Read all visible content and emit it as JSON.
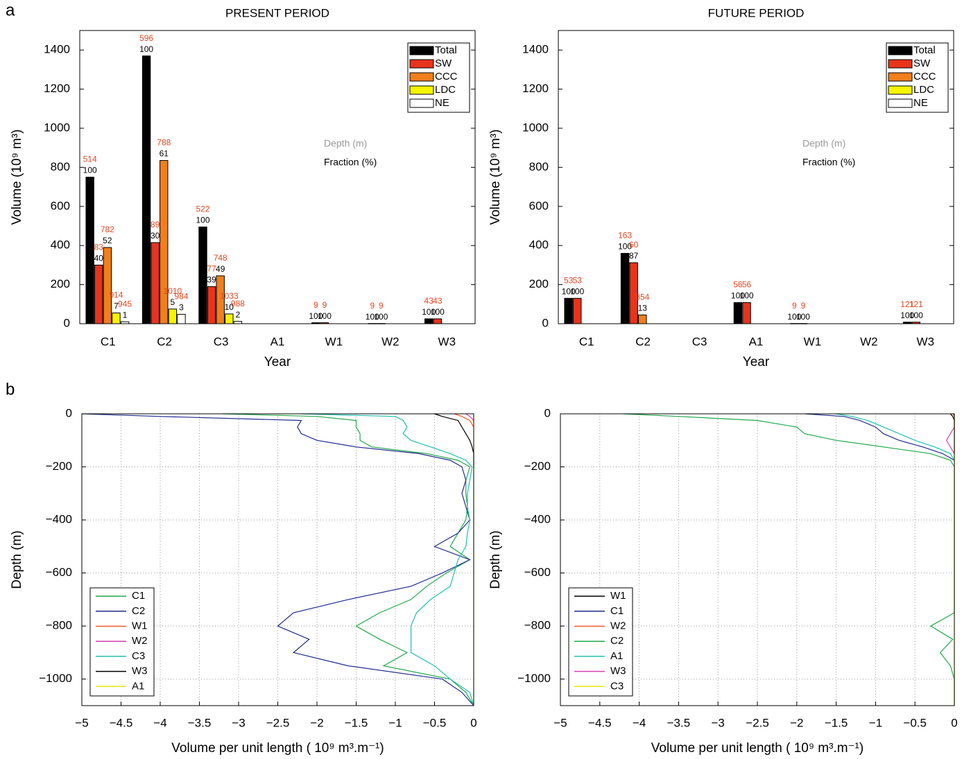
{
  "panel_labels": [
    "a",
    "b"
  ],
  "chart_data": [
    {
      "type": "bar",
      "title": "PRESENT PERIOD",
      "x_label": "Year",
      "y_label": "Volume (10⁹ m³)",
      "annotations": [
        "Depth (m)",
        "Fraction (%)"
      ],
      "categories": [
        "C1",
        "C2",
        "C3",
        "A1",
        "W1",
        "W2",
        "W3"
      ],
      "ylim": [
        0,
        1500
      ],
      "yticks": [
        0,
        200,
        400,
        600,
        800,
        1000,
        1200,
        1400
      ],
      "grid": false,
      "legend": "upper right",
      "series": [
        {
          "name": "Total",
          "color": "#000000",
          "values": [
            750,
            1370,
            495,
            null,
            5,
            1,
            25
          ],
          "fraction": [
            100,
            100,
            100,
            null,
            100,
            100,
            100
          ],
          "depth": [
            514,
            596,
            522,
            null,
            9,
            9,
            43
          ]
        },
        {
          "name": "SW",
          "color": "#e8341c",
          "values": [
            300,
            415,
            190,
            null,
            5,
            1,
            25
          ],
          "fraction": [
            40,
            30,
            39,
            null,
            100,
            100,
            100
          ],
          "depth": [
            83,
            89,
            77,
            null,
            9,
            9,
            43
          ]
        },
        {
          "name": "CCC",
          "color": "#f07f1c",
          "values": [
            390,
            835,
            245,
            null,
            null,
            null,
            null
          ],
          "fraction": [
            52,
            61,
            49,
            null,
            null,
            null,
            null
          ],
          "depth": [
            782,
            788,
            748,
            null,
            null,
            null,
            null
          ]
        },
        {
          "name": "LDC",
          "color": "#f5f500",
          "values": [
            55,
            75,
            50,
            null,
            null,
            null,
            null
          ],
          "fraction": [
            7,
            5,
            10,
            null,
            null,
            null,
            null
          ],
          "depth": [
            914,
            1010,
            1033,
            null,
            null,
            null,
            null
          ]
        },
        {
          "name": "NE",
          "color": "#ffffff",
          "values": [
            10,
            48,
            12,
            null,
            null,
            null,
            null
          ],
          "fraction": [
            1,
            3,
            2,
            null,
            null,
            null,
            null
          ],
          "depth": [
            945,
            984,
            988,
            null,
            null,
            null,
            null
          ]
        }
      ]
    },
    {
      "type": "bar",
      "title": "FUTURE PERIOD",
      "x_label": "Year",
      "y_label": "Volume (10⁹ m³)",
      "annotations": [
        "Depth (m)",
        "Fraction (%)"
      ],
      "categories": [
        "C1",
        "C2",
        "C3",
        "A1",
        "W1",
        "W2",
        "W3"
      ],
      "ylim": [
        0,
        1500
      ],
      "yticks": [
        0,
        200,
        400,
        600,
        800,
        1000,
        1200,
        1400
      ],
      "grid": false,
      "legend": "upper right",
      "series": [
        {
          "name": "Total",
          "color": "#000000",
          "values": [
            130,
            360,
            null,
            108,
            1,
            null,
            8
          ],
          "fraction": [
            100,
            100,
            null,
            100,
            100,
            null,
            100
          ],
          "depth": [
            53,
            163,
            null,
            56,
            9,
            null,
            121
          ]
        },
        {
          "name": "SW",
          "color": "#e8341c",
          "values": [
            130,
            312,
            null,
            108,
            1,
            null,
            8
          ],
          "fraction": [
            100,
            87,
            null,
            100,
            100,
            null,
            100
          ],
          "depth": [
            53,
            60,
            null,
            56,
            9,
            null,
            121
          ]
        },
        {
          "name": "CCC",
          "color": "#f07f1c",
          "values": [
            null,
            45,
            null,
            null,
            null,
            null,
            null
          ],
          "fraction": [
            null,
            13,
            null,
            null,
            null,
            null,
            null
          ],
          "depth": [
            null,
            854,
            null,
            null,
            null,
            null,
            null
          ]
        },
        {
          "name": "LDC",
          "color": "#f5f500",
          "values": [
            null,
            null,
            null,
            null,
            null,
            null,
            null
          ],
          "fraction": [
            null,
            null,
            null,
            null,
            null,
            null,
            null
          ],
          "depth": [
            null,
            null,
            null,
            null,
            null,
            null,
            null
          ]
        },
        {
          "name": "NE",
          "color": "#ffffff",
          "values": [
            null,
            null,
            null,
            null,
            null,
            null,
            null
          ],
          "fraction": [
            null,
            null,
            null,
            null,
            null,
            null,
            null
          ],
          "depth": [
            null,
            null,
            null,
            null,
            null,
            null,
            null
          ]
        }
      ]
    },
    {
      "type": "line",
      "x_label": "Volume per unit length ( 10⁹ m³.m⁻¹)",
      "y_label": "Depth (m)",
      "xlim": [
        -5,
        0
      ],
      "ylim": [
        -1100,
        0
      ],
      "grid": true,
      "legend": "lower left",
      "xticks": [
        {
          "value": -5,
          "label": "−5"
        },
        {
          "value": -4.5,
          "label": "−4.5"
        },
        {
          "value": -4,
          "label": "−4"
        },
        {
          "value": -3.5,
          "label": "−3.5"
        },
        {
          "value": -3,
          "label": "−3"
        },
        {
          "value": -2.5,
          "label": "−2.5"
        },
        {
          "value": -2,
          "label": "−2"
        },
        {
          "value": -1.5,
          "label": "−1.5"
        },
        {
          "value": -1,
          "label": "−1"
        },
        {
          "value": -0.5,
          "label": "−0.5"
        },
        0
      ],
      "yticks": [
        0,
        {
          "value": -200,
          "label": "−200"
        },
        {
          "value": -400,
          "label": "−400"
        },
        {
          "value": -600,
          "label": "−600"
        },
        {
          "value": -800,
          "label": "−800"
        },
        {
          "value": -1000,
          "label": "−1000"
        }
      ],
      "depths": [
        0,
        -10,
        -25,
        -50,
        -75,
        -100,
        -125,
        -150,
        -175,
        -200,
        -250,
        -300,
        -350,
        -400,
        -450,
        -500,
        -550,
        -600,
        -650,
        -700,
        -750,
        -800,
        -850,
        -900,
        -950,
        -1000,
        -1050,
        -1100
      ],
      "series": [
        {
          "name": "C1",
          "color": "#22a84a",
          "values": [
            -3.2,
            -2.0,
            -1.5,
            -1.5,
            -1.45,
            -1.45,
            -1.3,
            -0.6,
            -0.2,
            -0.05,
            -0.1,
            -0.1,
            -0.08,
            -0.1,
            -0.2,
            -0.3,
            -0.05,
            -0.35,
            -0.6,
            -0.8,
            -1.2,
            -1.5,
            -1.2,
            -0.85,
            -1.15,
            -0.3,
            -0.1,
            0
          ]
        },
        {
          "name": "C2",
          "color": "#1f2a8c",
          "values": [
            -5,
            -4.0,
            -2.2,
            -2.25,
            -2.2,
            -2.0,
            -1.5,
            -0.7,
            -0.3,
            -0.15,
            -0.1,
            -0.15,
            -0.1,
            -0.05,
            -0.2,
            -0.5,
            -0.05,
            -0.4,
            -0.8,
            -1.6,
            -2.3,
            -2.5,
            -2.1,
            -2.3,
            -1.6,
            -0.4,
            -0.15,
            0
          ]
        },
        {
          "name": "W1",
          "color": "#f05a22",
          "values": [
            -0.25,
            -0.15,
            -0.05,
            0,
            null,
            null,
            null,
            null,
            null,
            null,
            null,
            null,
            null,
            null,
            null,
            null,
            null,
            null,
            null,
            null,
            null,
            null,
            null,
            null,
            null,
            null,
            null,
            null
          ]
        },
        {
          "name": "W2",
          "color": "#d63fb0",
          "values": [
            -0.1,
            -0.05,
            0,
            null,
            null,
            null,
            null,
            null,
            null,
            null,
            null,
            null,
            null,
            null,
            null,
            null,
            null,
            null,
            null,
            null,
            null,
            null,
            null,
            null,
            null,
            null,
            null,
            null
          ]
        },
        {
          "name": "C3",
          "color": "#1fbfb0",
          "values": [
            -2.2,
            -1.0,
            -0.9,
            -0.85,
            -0.9,
            -0.8,
            -0.55,
            -0.3,
            -0.1,
            -0.02,
            -0.05,
            -0.08,
            -0.08,
            -0.05,
            -0.08,
            -0.1,
            -0.2,
            -0.25,
            -0.3,
            -0.55,
            -0.73,
            -0.8,
            -0.8,
            -0.8,
            -0.5,
            -0.3,
            -0.05,
            0
          ]
        },
        {
          "name": "W3",
          "color": "#000000",
          "values": [
            -0.5,
            -0.4,
            -0.2,
            -0.15,
            -0.1,
            -0.05,
            -0.02,
            0,
            0,
            0,
            null,
            null,
            null,
            null,
            null,
            null,
            null,
            null,
            null,
            null,
            null,
            null,
            null,
            null,
            null,
            null,
            null,
            null
          ]
        },
        {
          "name": "A1",
          "color": "#e8e800",
          "values": [
            0,
            0,
            0,
            0,
            0,
            0,
            0,
            0,
            0,
            0,
            0,
            0,
            0,
            0,
            0,
            0,
            0,
            0,
            0,
            0,
            0,
            0,
            0,
            0,
            0,
            0,
            0,
            0
          ]
        }
      ]
    },
    {
      "type": "line",
      "x_label": "Volume per unit length ( 10⁹ m³.m⁻¹)",
      "y_label": "Depth (m)",
      "xlim": [
        -5,
        0
      ],
      "ylim": [
        -1100,
        0
      ],
      "grid": true,
      "legend": "lower left",
      "xticks": [
        {
          "value": -5,
          "label": "−5"
        },
        {
          "value": -4.5,
          "label": "−4.5"
        },
        {
          "value": -4,
          "label": "−4"
        },
        {
          "value": -3.5,
          "label": "−3.5"
        },
        {
          "value": -3,
          "label": "−3"
        },
        {
          "value": -2.5,
          "label": "−2.5"
        },
        {
          "value": -2,
          "label": "−2"
        },
        {
          "value": -1.5,
          "label": "−1.5"
        },
        {
          "value": -1,
          "label": "−1"
        },
        {
          "value": -0.5,
          "label": "−0.5"
        },
        0
      ],
      "yticks": [
        0,
        {
          "value": -200,
          "label": "−200"
        },
        {
          "value": -400,
          "label": "−400"
        },
        {
          "value": -600,
          "label": "−600"
        },
        {
          "value": -800,
          "label": "−800"
        },
        {
          "value": -1000,
          "label": "−1000"
        }
      ],
      "depths": [
        0,
        -10,
        -25,
        -50,
        -75,
        -100,
        -125,
        -150,
        -175,
        -200,
        -250,
        -300,
        -350,
        -400,
        -450,
        -500,
        -550,
        -600,
        -650,
        -700,
        -750,
        -800,
        -850,
        -900,
        -950,
        -1000,
        -1050,
        -1100
      ],
      "series": [
        {
          "name": "W1",
          "color": "#000000",
          "values": [
            -0.05,
            -0.02,
            0,
            0,
            0,
            0,
            0,
            0,
            null,
            null,
            null,
            null,
            null,
            null,
            null,
            null,
            null,
            null,
            null,
            null,
            null,
            null,
            null,
            null,
            null,
            null,
            null,
            null
          ]
        },
        {
          "name": "C1",
          "color": "#1f2a8c",
          "values": [
            -1.9,
            -1.4,
            -1.2,
            -1.0,
            -0.9,
            -0.7,
            -0.4,
            -0.15,
            0,
            null,
            null,
            null,
            null,
            null,
            null,
            null,
            null,
            null,
            null,
            null,
            null,
            null,
            null,
            null,
            null,
            null,
            null,
            null
          ]
        },
        {
          "name": "W2",
          "color": "#f05a22",
          "values": [
            -0.02,
            0,
            null,
            null,
            null,
            null,
            null,
            null,
            null,
            null,
            null,
            null,
            null,
            null,
            null,
            null,
            null,
            null,
            null,
            null,
            null,
            null,
            null,
            null,
            null,
            null,
            null,
            null
          ]
        },
        {
          "name": "C2",
          "color": "#22a84a",
          "values": [
            -4.2,
            -3.5,
            -2.5,
            -2.0,
            -1.9,
            -1.5,
            -0.9,
            -0.3,
            -0.05,
            0,
            0,
            0,
            0,
            0,
            0,
            0,
            0,
            0,
            0,
            0,
            0,
            -0.3,
            -0.02,
            -0.18,
            -0.05,
            0,
            0,
            0
          ]
        },
        {
          "name": "A1",
          "color": "#1fbfb0",
          "values": [
            -1.5,
            -1.3,
            -1.1,
            -0.9,
            -0.7,
            -0.5,
            -0.25,
            -0.05,
            0,
            null,
            null,
            null,
            null,
            null,
            null,
            null,
            null,
            null,
            null,
            null,
            null,
            null,
            null,
            null,
            null,
            null,
            null,
            null
          ]
        },
        {
          "name": "W3",
          "color": "#d63fb0",
          "values": [
            0,
            0,
            0,
            0,
            -0.05,
            -0.1,
            -0.05,
            0,
            null,
            null,
            null,
            null,
            null,
            null,
            null,
            null,
            null,
            null,
            null,
            null,
            null,
            null,
            null,
            null,
            null,
            null,
            null,
            null
          ]
        },
        {
          "name": "C3",
          "color": "#e8e800",
          "values": [
            0,
            0,
            0,
            0,
            0,
            0,
            0,
            0,
            0,
            0,
            0,
            0,
            0,
            0,
            0,
            0,
            0,
            0,
            0,
            0,
            0,
            0,
            0,
            0,
            0,
            0,
            0,
            0
          ]
        }
      ]
    }
  ]
}
